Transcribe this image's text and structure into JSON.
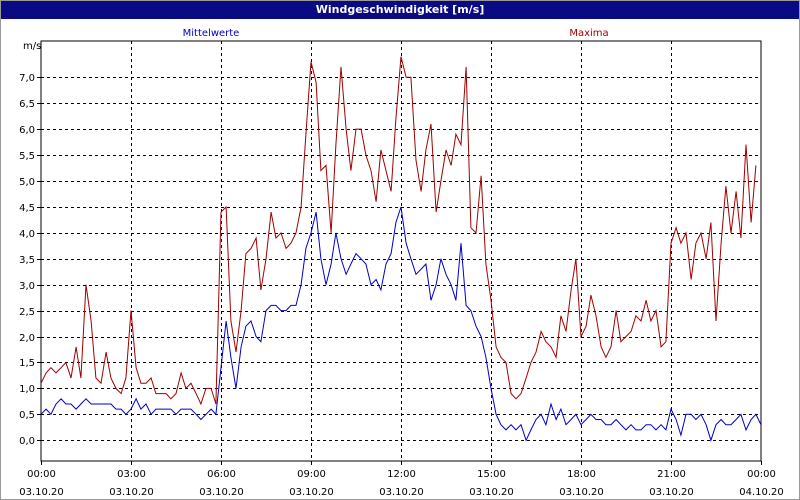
{
  "window": {
    "title": "Windgeschwindigkeit [m/s]"
  },
  "colors": {
    "titlebar": "#0a0a82",
    "mean": "#0000cc",
    "max": "#a00000",
    "grid": "#000000"
  },
  "chart_data": {
    "type": "line",
    "title": "Windgeschwindigkeit [m/s]",
    "ylabel": "m/s",
    "ylim": [
      -0.4,
      7.7
    ],
    "xlim_hours": [
      0,
      24
    ],
    "grid": true,
    "y_ticks": [
      {
        "v": 0.0,
        "label": "0,0"
      },
      {
        "v": 0.5,
        "label": "0,5"
      },
      {
        "v": 1.0,
        "label": "1,0"
      },
      {
        "v": 1.5,
        "label": "1,5"
      },
      {
        "v": 2.0,
        "label": "2,0"
      },
      {
        "v": 2.5,
        "label": "2,5"
      },
      {
        "v": 3.0,
        "label": "3,0"
      },
      {
        "v": 3.5,
        "label": "3,5"
      },
      {
        "v": 4.0,
        "label": "4,0"
      },
      {
        "v": 4.5,
        "label": "4,5"
      },
      {
        "v": 5.0,
        "label": "5,0"
      },
      {
        "v": 5.5,
        "label": "5,5"
      },
      {
        "v": 6.0,
        "label": "6,0"
      },
      {
        "v": 6.5,
        "label": "6,5"
      },
      {
        "v": 7.0,
        "label": "7,0"
      }
    ],
    "x_ticks": [
      {
        "h": 0,
        "time": "00:00",
        "date": "03.10.20"
      },
      {
        "h": 3,
        "time": "03:00",
        "date": "03.10.20"
      },
      {
        "h": 6,
        "time": "06:00",
        "date": "03.10.20"
      },
      {
        "h": 9,
        "time": "09:00",
        "date": "03.10.20"
      },
      {
        "h": 12,
        "time": "12:00",
        "date": "03.10.20"
      },
      {
        "h": 15,
        "time": "15:00",
        "date": "03.10.20"
      },
      {
        "h": 18,
        "time": "18:00",
        "date": "03.10.20"
      },
      {
        "h": 21,
        "time": "21:00",
        "date": "03.10.20"
      },
      {
        "h": 24,
        "time": "00:00",
        "date": "04.10.20"
      }
    ],
    "series": [
      {
        "name": "Mittelwerte",
        "color": "#0000cc",
        "points": [
          [
            0.0,
            0.5
          ],
          [
            0.17,
            0.6
          ],
          [
            0.33,
            0.5
          ],
          [
            0.5,
            0.7
          ],
          [
            0.67,
            0.8
          ],
          [
            0.83,
            0.7
          ],
          [
            1.0,
            0.7
          ],
          [
            1.17,
            0.6
          ],
          [
            1.33,
            0.7
          ],
          [
            1.5,
            0.8
          ],
          [
            1.67,
            0.7
          ],
          [
            1.83,
            0.7
          ],
          [
            2.0,
            0.7
          ],
          [
            2.17,
            0.7
          ],
          [
            2.33,
            0.7
          ],
          [
            2.5,
            0.6
          ],
          [
            2.67,
            0.6
          ],
          [
            2.83,
            0.5
          ],
          [
            3.0,
            0.6
          ],
          [
            3.17,
            0.8
          ],
          [
            3.33,
            0.6
          ],
          [
            3.5,
            0.7
          ],
          [
            3.67,
            0.5
          ],
          [
            3.83,
            0.6
          ],
          [
            4.0,
            0.6
          ],
          [
            4.17,
            0.6
          ],
          [
            4.33,
            0.6
          ],
          [
            4.5,
            0.5
          ],
          [
            4.67,
            0.6
          ],
          [
            4.83,
            0.6
          ],
          [
            5.0,
            0.6
          ],
          [
            5.17,
            0.5
          ],
          [
            5.33,
            0.4
          ],
          [
            5.5,
            0.5
          ],
          [
            5.67,
            0.6
          ],
          [
            5.83,
            0.5
          ],
          [
            6.0,
            1.4
          ],
          [
            6.17,
            2.3
          ],
          [
            6.33,
            1.6
          ],
          [
            6.5,
            1.0
          ],
          [
            6.67,
            1.8
          ],
          [
            6.83,
            2.2
          ],
          [
            7.0,
            2.3
          ],
          [
            7.17,
            2.0
          ],
          [
            7.33,
            1.9
          ],
          [
            7.5,
            2.5
          ],
          [
            7.67,
            2.6
          ],
          [
            7.83,
            2.6
          ],
          [
            8.0,
            2.5
          ],
          [
            8.17,
            2.5
          ],
          [
            8.33,
            2.6
          ],
          [
            8.5,
            2.6
          ],
          [
            8.67,
            3.0
          ],
          [
            8.83,
            3.7
          ],
          [
            9.0,
            4.0
          ],
          [
            9.17,
            4.4
          ],
          [
            9.33,
            3.5
          ],
          [
            9.5,
            3.0
          ],
          [
            9.67,
            3.4
          ],
          [
            9.83,
            4.0
          ],
          [
            10.0,
            3.5
          ],
          [
            10.17,
            3.2
          ],
          [
            10.33,
            3.4
          ],
          [
            10.5,
            3.6
          ],
          [
            10.67,
            3.5
          ],
          [
            10.83,
            3.4
          ],
          [
            11.0,
            3.0
          ],
          [
            11.17,
            3.1
          ],
          [
            11.33,
            2.9
          ],
          [
            11.5,
            3.4
          ],
          [
            11.67,
            3.6
          ],
          [
            11.83,
            4.2
          ],
          [
            12.0,
            4.5
          ],
          [
            12.17,
            3.8
          ],
          [
            12.33,
            3.5
          ],
          [
            12.5,
            3.2
          ],
          [
            12.67,
            3.3
          ],
          [
            12.83,
            3.4
          ],
          [
            13.0,
            2.7
          ],
          [
            13.17,
            3.0
          ],
          [
            13.33,
            3.5
          ],
          [
            13.5,
            3.2
          ],
          [
            13.67,
            3.0
          ],
          [
            13.83,
            2.7
          ],
          [
            14.0,
            3.8
          ],
          [
            14.17,
            2.6
          ],
          [
            14.33,
            2.5
          ],
          [
            14.5,
            2.2
          ],
          [
            14.67,
            2.0
          ],
          [
            14.83,
            1.6
          ],
          [
            15.0,
            1.0
          ],
          [
            15.17,
            0.5
          ],
          [
            15.33,
            0.3
          ],
          [
            15.5,
            0.2
          ],
          [
            15.67,
            0.3
          ],
          [
            15.83,
            0.2
          ],
          [
            16.0,
            0.3
          ],
          [
            16.17,
            0.0
          ],
          [
            16.33,
            0.2
          ],
          [
            16.5,
            0.4
          ],
          [
            16.67,
            0.5
          ],
          [
            16.83,
            0.3
          ],
          [
            17.0,
            0.7
          ],
          [
            17.17,
            0.4
          ],
          [
            17.33,
            0.6
          ],
          [
            17.5,
            0.3
          ],
          [
            17.67,
            0.4
          ],
          [
            17.83,
            0.5
          ],
          [
            18.0,
            0.3
          ],
          [
            18.17,
            0.4
          ],
          [
            18.33,
            0.5
          ],
          [
            18.5,
            0.4
          ],
          [
            18.67,
            0.4
          ],
          [
            18.83,
            0.3
          ],
          [
            19.0,
            0.3
          ],
          [
            19.17,
            0.4
          ],
          [
            19.33,
            0.3
          ],
          [
            19.5,
            0.2
          ],
          [
            19.67,
            0.3
          ],
          [
            19.83,
            0.2
          ],
          [
            20.0,
            0.2
          ],
          [
            20.17,
            0.3
          ],
          [
            20.33,
            0.3
          ],
          [
            20.5,
            0.2
          ],
          [
            20.67,
            0.3
          ],
          [
            20.83,
            0.2
          ],
          [
            21.0,
            0.6
          ],
          [
            21.17,
            0.4
          ],
          [
            21.33,
            0.1
          ],
          [
            21.5,
            0.5
          ],
          [
            21.67,
            0.5
          ],
          [
            21.83,
            0.4
          ],
          [
            22.0,
            0.5
          ],
          [
            22.17,
            0.3
          ],
          [
            22.33,
            0.0
          ],
          [
            22.5,
            0.3
          ],
          [
            22.67,
            0.4
          ],
          [
            22.83,
            0.3
          ],
          [
            23.0,
            0.3
          ],
          [
            23.17,
            0.4
          ],
          [
            23.33,
            0.5
          ],
          [
            23.5,
            0.2
          ],
          [
            23.67,
            0.4
          ],
          [
            23.83,
            0.5
          ],
          [
            24.0,
            0.3
          ],
          [
            24.17,
            0.7
          ]
        ]
      },
      {
        "name": "Maxima",
        "color": "#a00000",
        "points": [
          [
            0.0,
            1.1
          ],
          [
            0.17,
            1.3
          ],
          [
            0.33,
            1.4
          ],
          [
            0.5,
            1.3
          ],
          [
            0.67,
            1.4
          ],
          [
            0.83,
            1.5
          ],
          [
            1.0,
            1.2
          ],
          [
            1.17,
            1.8
          ],
          [
            1.33,
            1.2
          ],
          [
            1.5,
            3.0
          ],
          [
            1.67,
            2.3
          ],
          [
            1.83,
            1.2
          ],
          [
            2.0,
            1.1
          ],
          [
            2.17,
            1.7
          ],
          [
            2.33,
            1.2
          ],
          [
            2.5,
            1.0
          ],
          [
            2.67,
            0.9
          ],
          [
            2.83,
            1.2
          ],
          [
            3.0,
            2.5
          ],
          [
            3.17,
            1.4
          ],
          [
            3.33,
            1.1
          ],
          [
            3.5,
            1.1
          ],
          [
            3.67,
            1.2
          ],
          [
            3.83,
            0.9
          ],
          [
            4.0,
            0.9
          ],
          [
            4.17,
            0.9
          ],
          [
            4.33,
            0.8
          ],
          [
            4.5,
            0.9
          ],
          [
            4.67,
            1.3
          ],
          [
            4.83,
            1.0
          ],
          [
            5.0,
            1.1
          ],
          [
            5.17,
            0.9
          ],
          [
            5.33,
            0.7
          ],
          [
            5.5,
            1.0
          ],
          [
            5.67,
            1.0
          ],
          [
            5.83,
            0.7
          ],
          [
            6.0,
            4.4
          ],
          [
            6.17,
            4.5
          ],
          [
            6.33,
            2.3
          ],
          [
            6.5,
            1.7
          ],
          [
            6.67,
            2.5
          ],
          [
            6.83,
            3.6
          ],
          [
            7.0,
            3.7
          ],
          [
            7.17,
            3.9
          ],
          [
            7.33,
            2.9
          ],
          [
            7.5,
            3.5
          ],
          [
            7.67,
            4.4
          ],
          [
            7.83,
            3.9
          ],
          [
            8.0,
            4.0
          ],
          [
            8.17,
            3.7
          ],
          [
            8.33,
            3.8
          ],
          [
            8.5,
            4.0
          ],
          [
            8.67,
            4.5
          ],
          [
            8.83,
            5.9
          ],
          [
            9.0,
            7.3
          ],
          [
            9.17,
            6.9
          ],
          [
            9.33,
            5.2
          ],
          [
            9.5,
            5.3
          ],
          [
            9.67,
            4.0
          ],
          [
            9.83,
            5.7
          ],
          [
            10.0,
            7.2
          ],
          [
            10.17,
            6.0
          ],
          [
            10.33,
            5.2
          ],
          [
            10.5,
            6.0
          ],
          [
            10.67,
            6.0
          ],
          [
            10.83,
            5.5
          ],
          [
            11.0,
            5.2
          ],
          [
            11.17,
            4.6
          ],
          [
            11.33,
            5.6
          ],
          [
            11.5,
            5.2
          ],
          [
            11.67,
            4.8
          ],
          [
            11.83,
            6.2
          ],
          [
            12.0,
            7.4
          ],
          [
            12.17,
            7.0
          ],
          [
            12.33,
            7.0
          ],
          [
            12.5,
            5.4
          ],
          [
            12.67,
            4.8
          ],
          [
            12.83,
            5.6
          ],
          [
            13.0,
            6.1
          ],
          [
            13.17,
            4.4
          ],
          [
            13.33,
            5.0
          ],
          [
            13.5,
            5.6
          ],
          [
            13.67,
            5.3
          ],
          [
            13.83,
            5.9
          ],
          [
            14.0,
            5.7
          ],
          [
            14.17,
            7.2
          ],
          [
            14.33,
            4.1
          ],
          [
            14.5,
            4.0
          ],
          [
            14.67,
            5.1
          ],
          [
            14.83,
            3.4
          ],
          [
            15.0,
            2.7
          ],
          [
            15.17,
            1.8
          ],
          [
            15.33,
            1.6
          ],
          [
            15.5,
            1.5
          ],
          [
            15.67,
            0.9
          ],
          [
            15.83,
            0.8
          ],
          [
            16.0,
            0.9
          ],
          [
            16.17,
            1.2
          ],
          [
            16.33,
            1.5
          ],
          [
            16.5,
            1.7
          ],
          [
            16.67,
            2.1
          ],
          [
            16.83,
            1.9
          ],
          [
            17.0,
            1.8
          ],
          [
            17.17,
            1.6
          ],
          [
            17.33,
            2.4
          ],
          [
            17.5,
            2.1
          ],
          [
            17.67,
            2.9
          ],
          [
            17.83,
            3.5
          ],
          [
            18.0,
            2.0
          ],
          [
            18.17,
            2.2
          ],
          [
            18.33,
            2.8
          ],
          [
            18.5,
            2.4
          ],
          [
            18.67,
            1.8
          ],
          [
            18.83,
            1.6
          ],
          [
            19.0,
            1.8
          ],
          [
            19.17,
            2.5
          ],
          [
            19.33,
            1.9
          ],
          [
            19.5,
            2.0
          ],
          [
            19.67,
            2.1
          ],
          [
            19.83,
            2.4
          ],
          [
            20.0,
            2.3
          ],
          [
            20.17,
            2.7
          ],
          [
            20.33,
            2.3
          ],
          [
            20.5,
            2.5
          ],
          [
            20.67,
            1.8
          ],
          [
            20.83,
            1.9
          ],
          [
            21.0,
            3.8
          ],
          [
            21.17,
            4.1
          ],
          [
            21.33,
            3.8
          ],
          [
            21.5,
            4.0
          ],
          [
            21.67,
            3.1
          ],
          [
            21.83,
            3.8
          ],
          [
            22.0,
            4.0
          ],
          [
            22.17,
            3.5
          ],
          [
            22.33,
            4.2
          ],
          [
            22.5,
            2.3
          ],
          [
            22.67,
            3.8
          ],
          [
            22.83,
            4.9
          ],
          [
            23.0,
            4.0
          ],
          [
            23.17,
            4.8
          ],
          [
            23.33,
            3.9
          ],
          [
            23.5,
            5.7
          ],
          [
            23.67,
            4.2
          ],
          [
            23.83,
            5.3
          ]
        ]
      }
    ]
  }
}
